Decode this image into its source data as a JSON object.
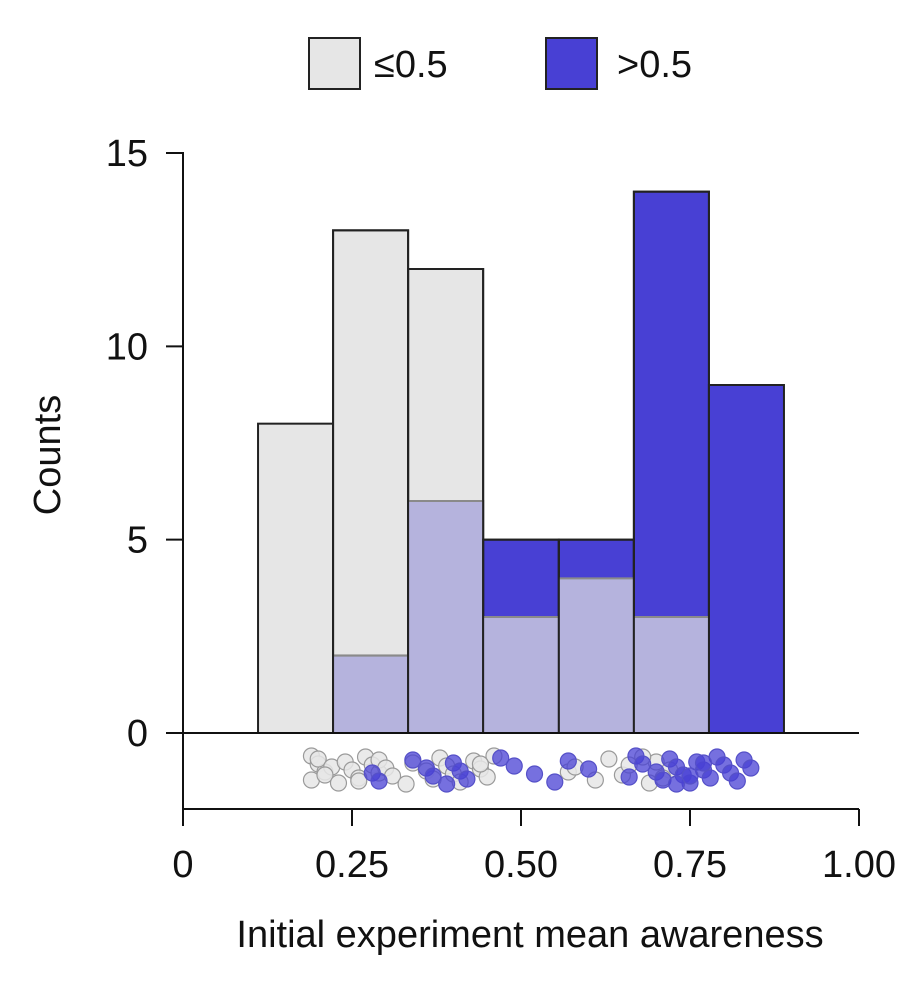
{
  "chart_data": {
    "type": "bar",
    "xlabel": "Initial experiment mean awareness",
    "ylabel": "Counts",
    "xlim": [
      0,
      1.0
    ],
    "ylim": [
      0,
      15
    ],
    "x_ticks": [
      "0",
      "0.25",
      "0.50",
      "0.75",
      "1.00"
    ],
    "x_tick_values": [
      0,
      0.25,
      0.5,
      0.75,
      1.0
    ],
    "y_ticks": [
      "0",
      "5",
      "10",
      "15"
    ],
    "y_tick_values": [
      0,
      5,
      10,
      15
    ],
    "bin_edges": [
      0.111,
      0.222,
      0.333,
      0.444,
      0.556,
      0.667,
      0.778,
      0.889
    ],
    "legend_position": "top",
    "series": [
      {
        "name": "≤0.5",
        "color": "#e6e6e6",
        "values": [
          8,
          13,
          12,
          3,
          4,
          3,
          0
        ]
      },
      {
        "name": ">0.5",
        "color": "#4840d4",
        "values": [
          0,
          2,
          6,
          5,
          5,
          14,
          9
        ]
      }
    ],
    "strip_points": [
      {
        "x": 0.19,
        "g": 0
      },
      {
        "x": 0.2,
        "g": 0
      },
      {
        "x": 0.21,
        "g": 0
      },
      {
        "x": 0.19,
        "g": 0
      },
      {
        "x": 0.2,
        "g": 0
      },
      {
        "x": 0.22,
        "g": 0
      },
      {
        "x": 0.21,
        "g": 0
      },
      {
        "x": 0.23,
        "g": 0
      },
      {
        "x": 0.24,
        "g": 0
      },
      {
        "x": 0.25,
        "g": 0
      },
      {
        "x": 0.26,
        "g": 0
      },
      {
        "x": 0.27,
        "g": 0
      },
      {
        "x": 0.28,
        "g": 0
      },
      {
        "x": 0.29,
        "g": 0
      },
      {
        "x": 0.26,
        "g": 0
      },
      {
        "x": 0.29,
        "g": 0
      },
      {
        "x": 0.3,
        "g": 0
      },
      {
        "x": 0.31,
        "g": 0
      },
      {
        "x": 0.33,
        "g": 0
      },
      {
        "x": 0.34,
        "g": 0
      },
      {
        "x": 0.36,
        "g": 0
      },
      {
        "x": 0.37,
        "g": 0
      },
      {
        "x": 0.38,
        "g": 0
      },
      {
        "x": 0.39,
        "g": 0
      },
      {
        "x": 0.4,
        "g": 0
      },
      {
        "x": 0.41,
        "g": 0
      },
      {
        "x": 0.43,
        "g": 0
      },
      {
        "x": 0.44,
        "g": 0
      },
      {
        "x": 0.45,
        "g": 0
      },
      {
        "x": 0.46,
        "g": 0
      },
      {
        "x": 0.44,
        "g": 0
      },
      {
        "x": 0.57,
        "g": 0
      },
      {
        "x": 0.61,
        "g": 0
      },
      {
        "x": 0.63,
        "g": 0
      },
      {
        "x": 0.58,
        "g": 0
      },
      {
        "x": 0.65,
        "g": 0
      },
      {
        "x": 0.69,
        "g": 0
      },
      {
        "x": 0.7,
        "g": 0
      },
      {
        "x": 0.72,
        "g": 0
      },
      {
        "x": 0.71,
        "g": 0
      },
      {
        "x": 0.68,
        "g": 0
      },
      {
        "x": 0.66,
        "g": 0
      },
      {
        "x": 0.28,
        "g": 1
      },
      {
        "x": 0.29,
        "g": 1
      },
      {
        "x": 0.34,
        "g": 1
      },
      {
        "x": 0.36,
        "g": 1
      },
      {
        "x": 0.37,
        "g": 1
      },
      {
        "x": 0.39,
        "g": 1
      },
      {
        "x": 0.4,
        "g": 1
      },
      {
        "x": 0.41,
        "g": 1
      },
      {
        "x": 0.42,
        "g": 1
      },
      {
        "x": 0.47,
        "g": 1
      },
      {
        "x": 0.49,
        "g": 1
      },
      {
        "x": 0.52,
        "g": 1
      },
      {
        "x": 0.55,
        "g": 1
      },
      {
        "x": 0.57,
        "g": 1
      },
      {
        "x": 0.6,
        "g": 1
      },
      {
        "x": 0.66,
        "g": 1
      },
      {
        "x": 0.67,
        "g": 1
      },
      {
        "x": 0.68,
        "g": 1
      },
      {
        "x": 0.7,
        "g": 1
      },
      {
        "x": 0.71,
        "g": 1
      },
      {
        "x": 0.72,
        "g": 1
      },
      {
        "x": 0.73,
        "g": 1
      },
      {
        "x": 0.74,
        "g": 1
      },
      {
        "x": 0.75,
        "g": 1
      },
      {
        "x": 0.76,
        "g": 1
      },
      {
        "x": 0.77,
        "g": 1
      },
      {
        "x": 0.78,
        "g": 1
      },
      {
        "x": 0.79,
        "g": 1
      },
      {
        "x": 0.8,
        "g": 1
      },
      {
        "x": 0.81,
        "g": 1
      },
      {
        "x": 0.82,
        "g": 1
      },
      {
        "x": 0.83,
        "g": 1
      },
      {
        "x": 0.84,
        "g": 1
      },
      {
        "x": 0.75,
        "g": 1
      },
      {
        "x": 0.73,
        "g": 1
      },
      {
        "x": 0.77,
        "g": 1
      }
    ]
  }
}
